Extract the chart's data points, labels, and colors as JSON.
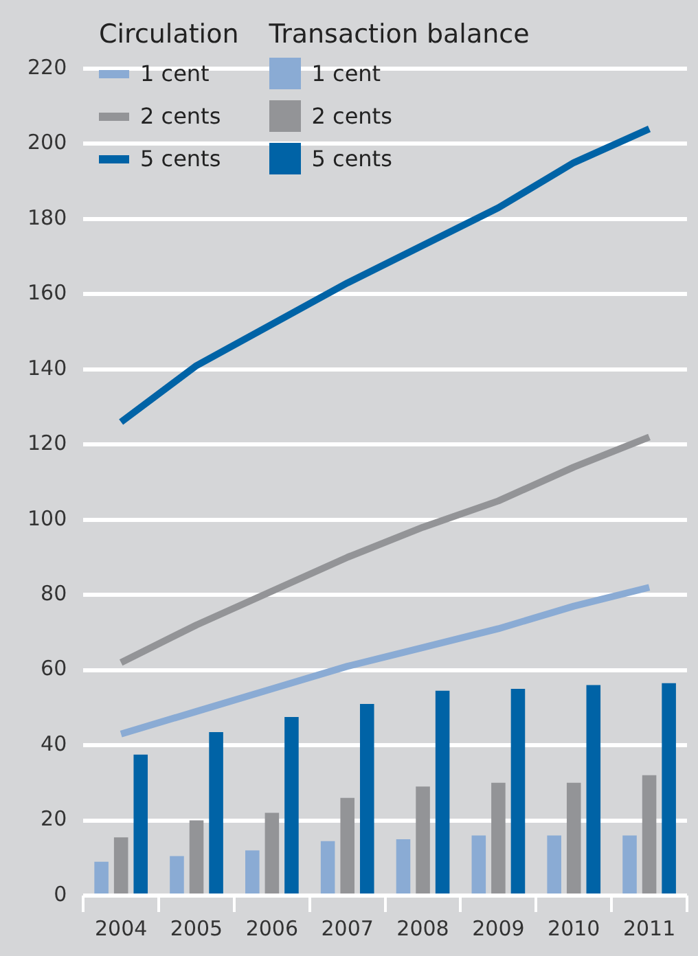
{
  "chart_data": {
    "type": "bar",
    "categories": [
      "2004",
      "2005",
      "2006",
      "2007",
      "2008",
      "2009",
      "2010",
      "2011"
    ],
    "series": [
      {
        "name": "1 cent",
        "type": "line",
        "color": "#8aabd4",
        "values": [
          43,
          49,
          55,
          61,
          66,
          71,
          77,
          82
        ]
      },
      {
        "name": "2 cents",
        "type": "line",
        "color": "#939497",
        "values": [
          62,
          72,
          81,
          90,
          98,
          105,
          114,
          122
        ]
      },
      {
        "name": "5 cents",
        "type": "line",
        "color": "#0063a6",
        "values": [
          126,
          141,
          152,
          163,
          173,
          183,
          195,
          204
        ]
      },
      {
        "name": "1 cent",
        "color": "#8aabd4",
        "values": [
          9,
          10.5,
          12,
          14.5,
          15,
          16,
          16,
          16
        ]
      },
      {
        "name": "2 cents",
        "color": "#939497",
        "values": [
          15.5,
          20,
          22,
          26,
          29,
          30,
          30,
          32
        ]
      },
      {
        "name": "5 cents",
        "color": "#0063a6",
        "values": [
          37.5,
          43.5,
          47.5,
          51,
          54.5,
          55,
          56,
          56.5
        ]
      }
    ],
    "annotations": [
      "Circulation",
      "Transaction balance"
    ],
    "ylim": [
      0,
      220
    ],
    "yticks": [
      0,
      20,
      40,
      60,
      80,
      100,
      120,
      140,
      160,
      180,
      200,
      220
    ],
    "grid": "y",
    "legend": "top left"
  }
}
